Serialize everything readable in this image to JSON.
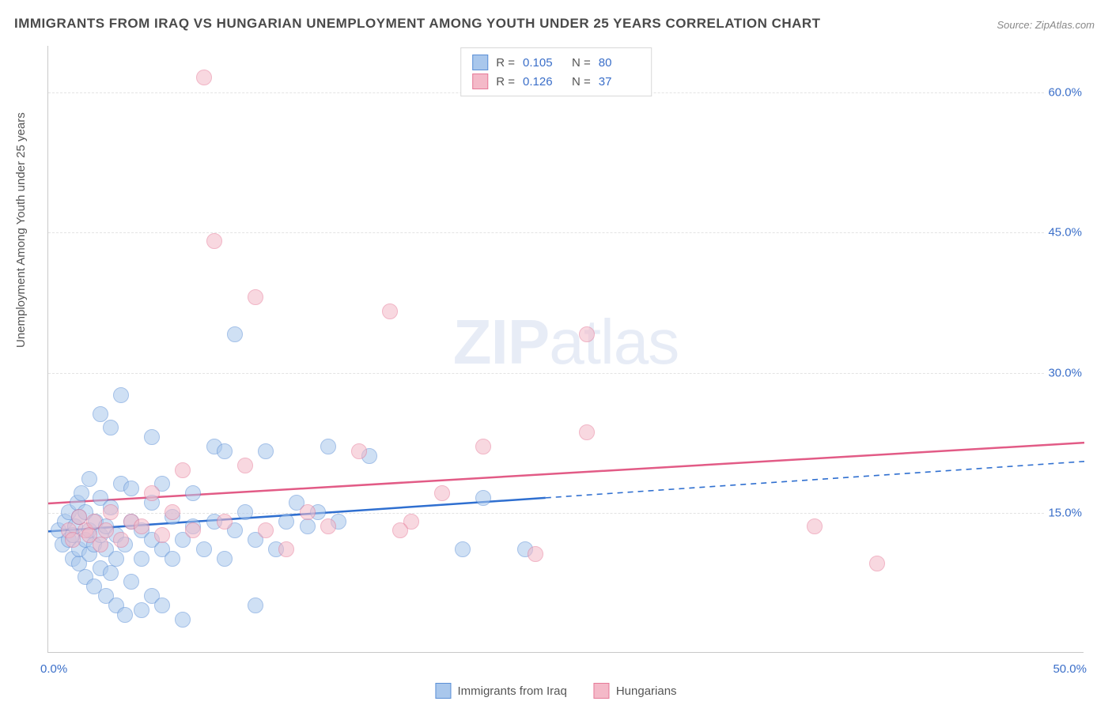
{
  "title": "IMMIGRANTS FROM IRAQ VS HUNGARIAN UNEMPLOYMENT AMONG YOUTH UNDER 25 YEARS CORRELATION CHART",
  "source": "Source: ZipAtlas.com",
  "y_axis_label": "Unemployment Among Youth under 25 years",
  "watermark_bold": "ZIP",
  "watermark_light": "atlas",
  "chart": {
    "type": "scatter",
    "xlim": [
      0,
      50
    ],
    "ylim": [
      0,
      65
    ],
    "x_tick_start": "0.0%",
    "x_tick_end": "50.0%",
    "y_ticks": [
      {
        "value": 15,
        "label": "15.0%"
      },
      {
        "value": 30,
        "label": "30.0%"
      },
      {
        "value": 45,
        "label": "45.0%"
      },
      {
        "value": 60,
        "label": "60.0%"
      }
    ],
    "background_color": "#ffffff",
    "grid_color": "#e3e3e3",
    "axis_color": "#c9c9c9",
    "point_radius": 10,
    "series": [
      {
        "name": "Immigrants from Iraq",
        "key": "iraq",
        "fill": "#a9c7ec",
        "fill_opacity": 0.55,
        "stroke": "#5b8fd6",
        "line_color": "#2f6fd0",
        "R": "0.105",
        "N": "80",
        "trend": {
          "x1": 0,
          "y1": 13.0,
          "x2": 50,
          "y2": 20.5,
          "solid_until_x": 24
        },
        "points": [
          [
            0.5,
            13
          ],
          [
            0.7,
            11.5
          ],
          [
            0.8,
            14
          ],
          [
            1.0,
            12
          ],
          [
            1.0,
            15
          ],
          [
            1.2,
            10
          ],
          [
            1.2,
            12.5
          ],
          [
            1.3,
            13.5
          ],
          [
            1.4,
            16
          ],
          [
            1.5,
            9.5
          ],
          [
            1.5,
            11
          ],
          [
            1.5,
            14.5
          ],
          [
            1.6,
            17
          ],
          [
            1.8,
            8
          ],
          [
            1.8,
            12
          ],
          [
            1.8,
            15
          ],
          [
            2.0,
            10.5
          ],
          [
            2.0,
            13
          ],
          [
            2.0,
            18.5
          ],
          [
            2.2,
            7
          ],
          [
            2.2,
            11.5
          ],
          [
            2.3,
            14
          ],
          [
            2.5,
            9
          ],
          [
            2.5,
            12.5
          ],
          [
            2.5,
            16.5
          ],
          [
            2.5,
            25.5
          ],
          [
            2.8,
            6
          ],
          [
            2.8,
            11
          ],
          [
            2.8,
            13.5
          ],
          [
            3.0,
            8.5
          ],
          [
            3.0,
            15.5
          ],
          [
            3.0,
            24
          ],
          [
            3.3,
            5
          ],
          [
            3.3,
            10
          ],
          [
            3.3,
            12.5
          ],
          [
            3.5,
            18
          ],
          [
            3.5,
            27.5
          ],
          [
            3.7,
            4
          ],
          [
            3.7,
            11.5
          ],
          [
            4.0,
            7.5
          ],
          [
            4.0,
            14
          ],
          [
            4.0,
            17.5
          ],
          [
            4.5,
            4.5
          ],
          [
            4.5,
            10
          ],
          [
            4.5,
            13
          ],
          [
            5.0,
            6
          ],
          [
            5.0,
            12
          ],
          [
            5.0,
            16
          ],
          [
            5.0,
            23
          ],
          [
            5.5,
            5
          ],
          [
            5.5,
            11
          ],
          [
            5.5,
            18
          ],
          [
            6.0,
            10
          ],
          [
            6.0,
            14.5
          ],
          [
            6.5,
            3.5
          ],
          [
            6.5,
            12
          ],
          [
            7.0,
            13.5
          ],
          [
            7.0,
            17
          ],
          [
            7.5,
            11
          ],
          [
            8.0,
            22
          ],
          [
            8.0,
            14
          ],
          [
            8.5,
            10
          ],
          [
            8.5,
            21.5
          ],
          [
            9.0,
            34
          ],
          [
            9.0,
            13
          ],
          [
            9.5,
            15
          ],
          [
            10.0,
            5
          ],
          [
            10.0,
            12
          ],
          [
            10.5,
            21.5
          ],
          [
            11.0,
            11
          ],
          [
            11.5,
            14
          ],
          [
            12.0,
            16
          ],
          [
            12.5,
            13.5
          ],
          [
            13.0,
            15
          ],
          [
            13.5,
            22
          ],
          [
            14.0,
            14
          ],
          [
            15.5,
            21
          ],
          [
            20.0,
            11
          ],
          [
            21.0,
            16.5
          ],
          [
            23.0,
            11
          ]
        ]
      },
      {
        "name": "Hungarians",
        "key": "hungarians",
        "fill": "#f4b9c8",
        "fill_opacity": 0.55,
        "stroke": "#e67a98",
        "line_color": "#e25b86",
        "R": "0.126",
        "N": "37",
        "trend": {
          "x1": 0,
          "y1": 16.0,
          "x2": 50,
          "y2": 22.5,
          "solid_until_x": 50
        },
        "points": [
          [
            1.0,
            13
          ],
          [
            1.2,
            12
          ],
          [
            1.5,
            14.5
          ],
          [
            1.8,
            13
          ],
          [
            2.0,
            12.5
          ],
          [
            2.2,
            14
          ],
          [
            2.5,
            11.5
          ],
          [
            2.8,
            13
          ],
          [
            3.0,
            15
          ],
          [
            3.5,
            12
          ],
          [
            4.0,
            14
          ],
          [
            4.5,
            13.5
          ],
          [
            5.0,
            17
          ],
          [
            5.5,
            12.5
          ],
          [
            6.0,
            15
          ],
          [
            6.5,
            19.5
          ],
          [
            7.0,
            13
          ],
          [
            7.5,
            61.5
          ],
          [
            8.0,
            44
          ],
          [
            8.5,
            14
          ],
          [
            9.5,
            20
          ],
          [
            10.0,
            38
          ],
          [
            10.5,
            13
          ],
          [
            11.5,
            11
          ],
          [
            12.5,
            15
          ],
          [
            13.5,
            13.5
          ],
          [
            15.0,
            21.5
          ],
          [
            16.5,
            36.5
          ],
          [
            17.5,
            14
          ],
          [
            19.0,
            17
          ],
          [
            23.5,
            10.5
          ],
          [
            26.0,
            23.5
          ],
          [
            26.0,
            34
          ],
          [
            37.0,
            13.5
          ],
          [
            40.0,
            9.5
          ],
          [
            17.0,
            13
          ],
          [
            21.0,
            22
          ]
        ]
      }
    ],
    "legend_top": {
      "R_label": "R =",
      "N_label": "N ="
    }
  }
}
